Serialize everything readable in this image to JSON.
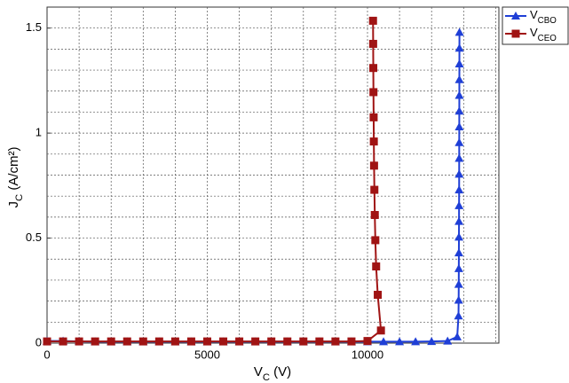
{
  "chart_data": {
    "type": "line",
    "x_label": "VC (V)",
    "y_label": "JC (A/cm²)",
    "xlim": [
      0,
      14100
    ],
    "ylim": [
      0,
      1.6
    ],
    "xticks": [
      0,
      5000,
      10000
    ],
    "yticks": [
      0,
      0.5,
      1,
      1.5
    ],
    "grid": true,
    "legend": "outside-top-right",
    "series": [
      {
        "name": "VCBO",
        "color": "#1f3fd6",
        "marker": "triangle",
        "x": [
          0,
          500,
          1000,
          1500,
          2000,
          2500,
          3000,
          3500,
          4000,
          4500,
          5000,
          5500,
          6000,
          6500,
          7000,
          7500,
          8000,
          8500,
          9000,
          9500,
          10000,
          10500,
          11000,
          11500,
          12000,
          12500,
          12800,
          12840,
          12845,
          12848,
          12850,
          12852,
          12854,
          12856,
          12858,
          12860,
          12861,
          12862,
          12863,
          12864,
          12865,
          12866,
          12867,
          12868,
          12869,
          12870
        ],
        "values": [
          0.01,
          0.01,
          0.008,
          0.007,
          0.007,
          0.007,
          0.007,
          0.007,
          0.007,
          0.007,
          0.007,
          0.007,
          0.007,
          0.007,
          0.007,
          0.007,
          0.007,
          0.007,
          0.007,
          0.007,
          0.007,
          0.007,
          0.007,
          0.007,
          0.008,
          0.01,
          0.03,
          0.13,
          0.205,
          0.28,
          0.355,
          0.43,
          0.505,
          0.58,
          0.655,
          0.73,
          0.805,
          0.88,
          0.955,
          1.03,
          1.105,
          1.18,
          1.255,
          1.33,
          1.405,
          1.48
        ]
      },
      {
        "name": "VCEO",
        "color": "#a01414",
        "marker": "square",
        "x": [
          0,
          500,
          1000,
          1500,
          2000,
          2500,
          3000,
          3500,
          4000,
          4500,
          5000,
          5500,
          6000,
          6500,
          7000,
          7500,
          8000,
          8500,
          9000,
          9500,
          10000,
          10420,
          10320,
          10270,
          10245,
          10228,
          10215,
          10205,
          10198,
          10192,
          10186,
          10181,
          10177,
          10173
        ],
        "values": [
          0.008,
          0.008,
          0.008,
          0.008,
          0.008,
          0.008,
          0.008,
          0.008,
          0.008,
          0.008,
          0.008,
          0.008,
          0.008,
          0.008,
          0.008,
          0.008,
          0.008,
          0.008,
          0.008,
          0.008,
          0.01,
          0.06,
          0.23,
          0.365,
          0.49,
          0.61,
          0.73,
          0.845,
          0.96,
          1.075,
          1.195,
          1.31,
          1.425,
          1.535
        ]
      }
    ]
  }
}
